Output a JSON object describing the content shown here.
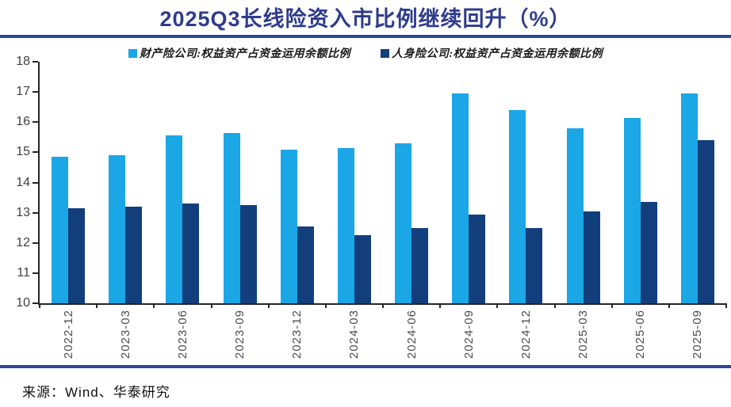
{
  "title": "2025Q3长线险资入市比例继续回升（%）",
  "source": "来源：Wind、华泰研究",
  "colors": {
    "title": "#2E3C8C",
    "rule": "#2E4796",
    "axis_line": "#262626",
    "axis_text": "#3f3f3f",
    "series1": "#1BA6E6",
    "series2": "#123F7C"
  },
  "chart_data": {
    "type": "bar",
    "title": "2025Q3长线险资入市比例继续回升（%）",
    "categories": [
      "2022-12",
      "2023-03",
      "2023-06",
      "2023-09",
      "2023-12",
      "2024-03",
      "2024-06",
      "2024-09",
      "2024-12",
      "2025-03",
      "2025-06",
      "2025-09"
    ],
    "series": [
      {
        "name": "财产险公司:权益资产占资金运用余额比例",
        "color": "#1BA6E6",
        "values": [
          14.85,
          14.9,
          15.55,
          15.65,
          15.1,
          15.15,
          15.3,
          16.95,
          16.4,
          15.8,
          16.15,
          16.95
        ]
      },
      {
        "name": "人身险公司:权益资产占资金运用余额比例",
        "color": "#123F7C",
        "values": [
          13.15,
          13.2,
          13.3,
          13.25,
          12.55,
          12.25,
          12.5,
          12.95,
          12.5,
          13.05,
          13.35,
          15.4
        ]
      }
    ],
    "xlabel": "",
    "ylabel": "",
    "ylim": [
      10,
      18
    ],
    "ytick_step": 1,
    "grid": false,
    "legend_position": "top"
  }
}
